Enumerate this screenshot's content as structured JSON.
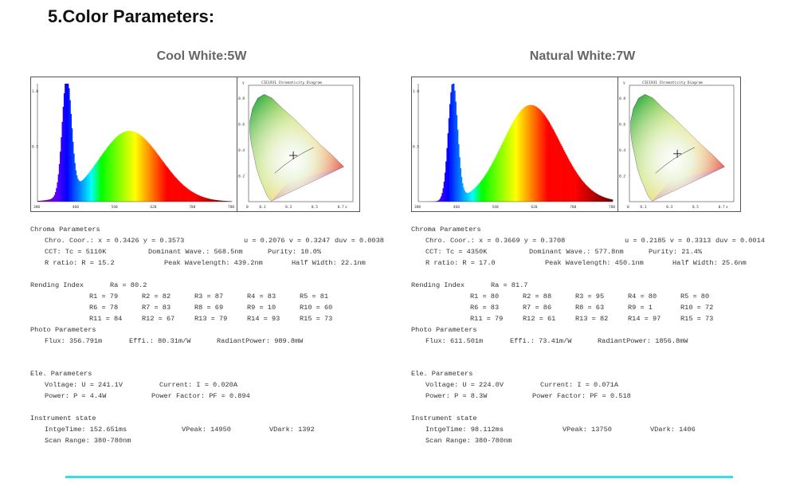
{
  "title": "5.Color Parameters:",
  "panels": [
    {
      "heading": "Cool White:5W",
      "spectrum": {
        "y_ticks": [
          "1.0",
          "0.5"
        ],
        "x_ticks": [
          "380",
          "460",
          "540",
          "620",
          "700",
          "780"
        ],
        "peak_nm": 439.2,
        "second_peak_nm": 568
      },
      "cie": {
        "title": "CIE1931 Chromaticity Diagram",
        "y_label": "y",
        "x_label": "x",
        "y_ticks": [
          "0.8",
          "0.6",
          "0.4",
          "0.2"
        ],
        "x_ticks": [
          "0",
          "0.1",
          "0.3",
          "0.5",
          "0.7"
        ],
        "point_x": 0.3426,
        "point_y": 0.3573
      },
      "chroma": {
        "header": "Chroma Parameters",
        "l1": "Chro. Coor.: x  = 0.3426 y = 0.3573",
        "l1b": "u = 0.2076 v = 0.3247",
        "l1c": "duv = 0.0038",
        "l2": "CCT: Tc =  5110K",
        "l2b": "Dominant Wave.: 568.5nm",
        "l2c": "Purity: 10.0%",
        "l3": "R ratio:  R  = 15.2",
        "l3b": "Peak Wavelength: 439.2nm",
        "l3c": "Half Width: 22.1nm"
      },
      "rending": {
        "header": "Rending Index",
        "ra": "Ra   = 80.2",
        "cells": [
          [
            "R1  = 79",
            "R2  = 82",
            "R3  = 87",
            "R4  = 83",
            "R5  = 81"
          ],
          [
            "R6  = 78",
            "R7  = 83",
            "R8  = 69",
            "R9  = 10",
            "R10 = 60"
          ],
          [
            "R11 = 84",
            "R12 = 67",
            "R13 = 79",
            "R14 = 93",
            "R15 = 73"
          ]
        ]
      },
      "photo": {
        "header": "Photo Parameters",
        "flux": "Flux: 356.791m",
        "effi": "Effi.: 80.31m/W",
        "radiant": "RadiantPower: 989.8mW"
      },
      "ele": {
        "header": "Ele. Parameters",
        "voltage": "Voltage: U = 241.1V",
        "current": "Current: I = 0.020A",
        "power": "Power: P =  4.4W",
        "pf": "Power Factor: PF = 0.894"
      },
      "inst": {
        "header": "Instrument state",
        "time": "IntgeTime: 152.651ms",
        "vpeak": "VPeak: 14950",
        "vdark": "VDark: 1392",
        "range": "Scan Range: 380-780nm"
      }
    },
    {
      "heading": "Natural White:7W",
      "spectrum": {
        "y_ticks": [
          "1.0",
          "0.5"
        ],
        "x_ticks": [
          "380",
          "460",
          "540",
          "620",
          "700",
          "780"
        ],
        "peak_nm": 450.1,
        "second_peak_nm": 610
      },
      "cie": {
        "title": "CIE1931 Chromaticity Diagram",
        "y_label": "y",
        "x_label": "x",
        "y_ticks": [
          "0.8",
          "0.6",
          "0.4",
          "0.2"
        ],
        "x_ticks": [
          "0",
          "0.1",
          "0.3",
          "0.5",
          "0.7"
        ],
        "point_x": 0.3669,
        "point_y": 0.3708
      },
      "chroma": {
        "header": "Chroma Parameters",
        "l1": "Chro. Coor.: x  = 0.3669 y = 0.3708",
        "l1b": "u = 0.2185 v = 0.3313",
        "l1c": "duv = 0.0014",
        "l2": "CCT: Tc =  4350K",
        "l2b": "Dominant Wave.: 577.8nm",
        "l2c": "Purity: 21.4%",
        "l3": "R ratio:  R  = 17.0",
        "l3b": "Peak Wavelength: 450.1nm",
        "l3c": "Half Width: 25.6nm"
      },
      "rending": {
        "header": "Rending Index",
        "ra": "Ra   = 81.7",
        "cells": [
          [
            "R1  = 80",
            "R2  = 88",
            "R3  = 95",
            "R4  = 80",
            "R5  = 80"
          ],
          [
            "R6  = 83",
            "R7  = 86",
            "R8  = 63",
            "R9  = 1",
            "R10 = 72"
          ],
          [
            "R11 = 79",
            "R12 = 61",
            "R13 = 82",
            "R14 = 97",
            "R15 = 73"
          ]
        ]
      },
      "photo": {
        "header": "Photo Parameters",
        "flux": "Flux: 611.501m",
        "effi": "Effi.: 73.41m/W",
        "radiant": "RadiantPower: 1856.8mW"
      },
      "ele": {
        "header": "Ele. Parameters",
        "voltage": "Voltage: U = 224.0V",
        "current": "Current: I = 0.071A",
        "power": "Power: P =  8.3W",
        "pf": "Power Factor: PF = 0.518"
      },
      "inst": {
        "header": "Instrument state",
        "time": "IntgeTime: 98.112ms",
        "vpeak": "VPeak: 13750",
        "vdark": "VDark: 1406",
        "range": "Scan Range: 380-780nm"
      }
    }
  ],
  "colors": {
    "accent_line": "#33e0e8",
    "heading": "#666666"
  }
}
